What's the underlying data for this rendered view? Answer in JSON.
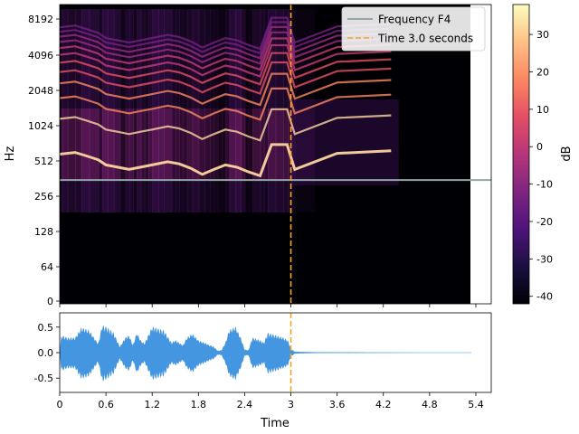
{
  "chart_data": [
    {
      "type": "heatmap",
      "kind": "spectrogram",
      "xlabel": "",
      "ylabel": "Hz",
      "xlim": [
        0,
        5.6
      ],
      "yscale": "log",
      "yticks": [
        0,
        64,
        128,
        256,
        512,
        1024,
        2048,
        4096,
        8192
      ],
      "ytick_labels": [
        "0",
        "64",
        "128",
        "256",
        "512",
        "1024",
        "2048",
        "4096",
        "8192"
      ],
      "signal_end_time": 5.35,
      "fundamental_series": [
        [
          0.0,
          580
        ],
        [
          0.2,
          600
        ],
        [
          0.35,
          560
        ],
        [
          0.5,
          520
        ],
        [
          0.6,
          470
        ],
        [
          0.75,
          450
        ],
        [
          0.9,
          430
        ],
        [
          1.05,
          450
        ],
        [
          1.2,
          470
        ],
        [
          1.4,
          500
        ],
        [
          1.55,
          480
        ],
        [
          1.7,
          440
        ],
        [
          1.85,
          390
        ],
        [
          2.0,
          430
        ],
        [
          2.15,
          470
        ],
        [
          2.3,
          450
        ],
        [
          2.45,
          410
        ],
        [
          2.6,
          380
        ],
        [
          2.75,
          700
        ],
        [
          2.95,
          700
        ],
        [
          3.05,
          430
        ],
        [
          3.6,
          590
        ],
        [
          4.3,
          620
        ]
      ],
      "colorbar": {
        "label": "dB",
        "min": -42,
        "max": 38,
        "ticks": [
          30,
          20,
          10,
          0,
          -10,
          -20,
          -30,
          -40
        ],
        "tick_labels": [
          "30",
          "20",
          "10",
          "0",
          "-10",
          "-20",
          "-30",
          "-40"
        ],
        "colormap": "magma"
      },
      "overlays": [
        {
          "type": "hline",
          "y": 349.23,
          "label": "Frequency F4",
          "color": "#95a5a6",
          "style": "solid"
        },
        {
          "type": "vline",
          "x": 3.0,
          "label": "Time 3.0 seconds",
          "color": "#f5a623",
          "style": "dashed"
        }
      ],
      "legend": {
        "placement": "top-right",
        "entries": [
          "Frequency F4",
          "Time 3.0 seconds"
        ]
      }
    },
    {
      "type": "line",
      "kind": "waveform",
      "xlabel": "Time",
      "ylabel": "",
      "xlim": [
        0,
        5.6
      ],
      "ylim": [
        -0.78,
        0.78
      ],
      "xticks": [
        0,
        0.6,
        1.2,
        1.8,
        2.4,
        3.0,
        3.6,
        4.2,
        4.8,
        5.4
      ],
      "xtick_labels": [
        "0",
        "0.6",
        "1.2",
        "1.8",
        "2.4",
        "3",
        "3.6",
        "4.2",
        "4.8",
        "5.4"
      ],
      "yticks": [
        0.5,
        0.0,
        -0.5
      ],
      "ytick_labels": [
        "0.5",
        "0.0",
        "-0.5"
      ],
      "color": "#4596e0",
      "envelope": [
        [
          0.0,
          0.02
        ],
        [
          0.02,
          0.35
        ],
        [
          0.1,
          0.3
        ],
        [
          0.2,
          0.3
        ],
        [
          0.28,
          0.5
        ],
        [
          0.38,
          0.45
        ],
        [
          0.5,
          0.18
        ],
        [
          0.55,
          0.55
        ],
        [
          0.62,
          0.5
        ],
        [
          0.7,
          0.4
        ],
        [
          0.78,
          0.12
        ],
        [
          0.85,
          0.3
        ],
        [
          0.9,
          0.35
        ],
        [
          0.95,
          0.15
        ],
        [
          1.0,
          0.4
        ],
        [
          1.05,
          0.25
        ],
        [
          1.1,
          0.18
        ],
        [
          1.15,
          0.35
        ],
        [
          1.2,
          0.52
        ],
        [
          1.28,
          0.48
        ],
        [
          1.35,
          0.45
        ],
        [
          1.45,
          0.2
        ],
        [
          1.5,
          0.25
        ],
        [
          1.55,
          0.2
        ],
        [
          1.6,
          0.15
        ],
        [
          1.65,
          0.3
        ],
        [
          1.72,
          0.38
        ],
        [
          1.8,
          0.25
        ],
        [
          1.88,
          0.2
        ],
        [
          1.95,
          0.15
        ],
        [
          2.0,
          0.12
        ],
        [
          2.05,
          0.04
        ],
        [
          2.1,
          0.05
        ],
        [
          2.15,
          0.2
        ],
        [
          2.2,
          0.45
        ],
        [
          2.28,
          0.52
        ],
        [
          2.35,
          0.3
        ],
        [
          2.4,
          0.06
        ],
        [
          2.45,
          0.05
        ],
        [
          2.5,
          0.3
        ],
        [
          2.6,
          0.25
        ],
        [
          2.65,
          0.2
        ],
        [
          2.7,
          0.4
        ],
        [
          2.8,
          0.35
        ],
        [
          2.9,
          0.3
        ],
        [
          2.96,
          0.25
        ],
        [
          3.0,
          0.08
        ],
        [
          3.05,
          0.02
        ],
        [
          3.3,
          0.01
        ],
        [
          5.35,
          0.004
        ]
      ],
      "vline": {
        "x": 3.0,
        "color": "#f5a623",
        "style": "dashed"
      }
    }
  ]
}
